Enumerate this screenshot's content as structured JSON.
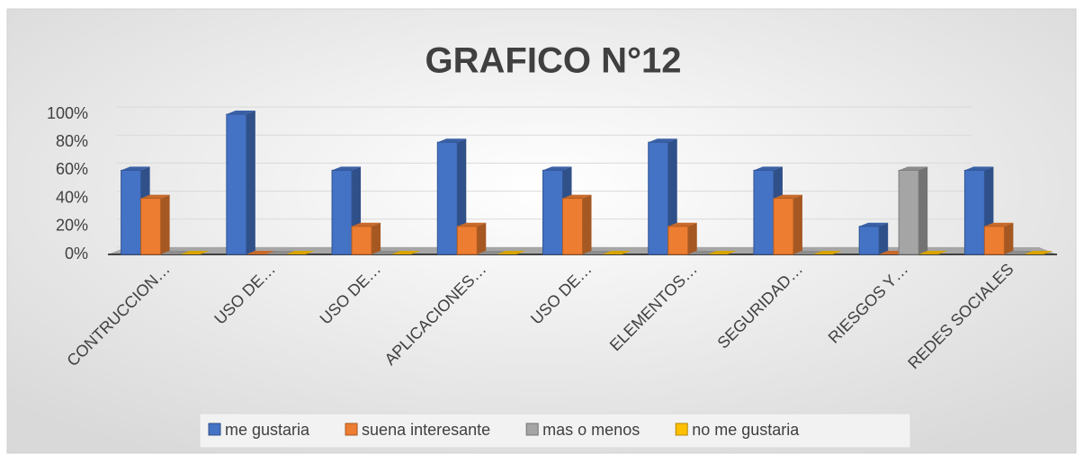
{
  "chart_data": {
    "type": "bar",
    "title": "GRAFICO N°12",
    "categories": [
      "CONTRUCCION…",
      "USO DE…",
      "USO DE…",
      "APLICACIONES…",
      "USO DE…",
      "ELEMENTOS…",
      "SEGURIDAD…",
      "RIESGOS Y…",
      "REDES SOCIALES"
    ],
    "series": [
      {
        "name": "me gustaria",
        "color": "#4472c4",
        "values": [
          60,
          100,
          60,
          80,
          60,
          80,
          60,
          20,
          60
        ]
      },
      {
        "name": "suena interesante",
        "color": "#ed7d31",
        "values": [
          40,
          0,
          20,
          20,
          40,
          20,
          40,
          0,
          20
        ]
      },
      {
        "name": "mas o menos",
        "color": "#a5a5a5",
        "values": [
          0,
          0,
          0,
          0,
          0,
          0,
          0,
          60,
          0
        ]
      },
      {
        "name": "no me gustaria",
        "color": "#ffc000",
        "values": [
          0,
          0,
          0,
          0,
          0,
          0,
          0,
          0,
          0
        ]
      }
    ],
    "ylim": [
      0,
      100
    ],
    "yticks": [
      {
        "value": 0,
        "label": "0%"
      },
      {
        "value": 20,
        "label": "20%"
      },
      {
        "value": 40,
        "label": "40%"
      },
      {
        "value": 60,
        "label": "60%"
      },
      {
        "value": 80,
        "label": "80%"
      },
      {
        "value": 100,
        "label": "100%"
      }
    ],
    "grid": true,
    "legend": "bottom"
  }
}
